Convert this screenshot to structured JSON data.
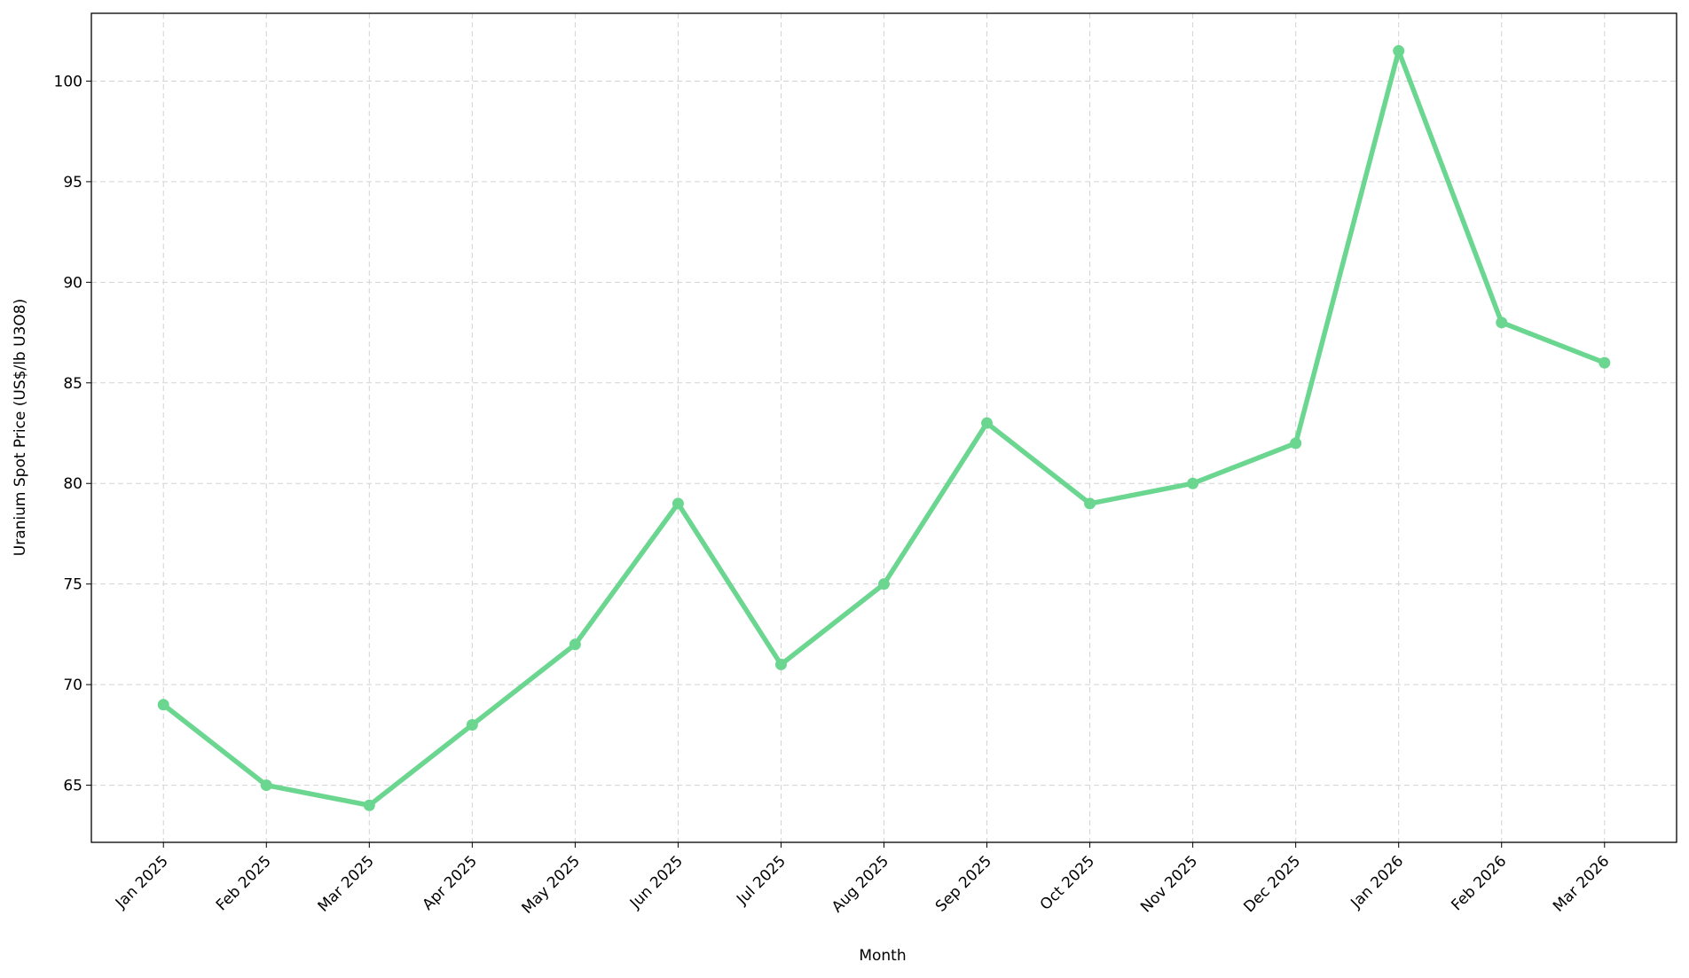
{
  "chart_data": {
    "type": "line",
    "x_label": "Month",
    "y_label": "Uranium Spot Price (US$/lb U3O8)",
    "categories": [
      "Jan 2025",
      "Feb 2025",
      "Mar 2025",
      "Apr 2025",
      "May 2025",
      "Jun 2025",
      "Jul 2025",
      "Aug 2025",
      "Sep 2025",
      "Oct 2025",
      "Nov 2025",
      "Dec 2025",
      "Jan 2026",
      "Feb 2026",
      "Mar 2026"
    ],
    "series": [
      {
        "color": "#6ad68f",
        "values": [
          69,
          65,
          64,
          68,
          72,
          79,
          71,
          75,
          83,
          79,
          80,
          82,
          101.5,
          88,
          86
        ]
      }
    ],
    "ylim": [
      62.16,
      103.37
    ],
    "yticks": [
      65,
      70,
      75,
      80,
      85,
      90,
      95,
      100
    ],
    "grid": true
  }
}
